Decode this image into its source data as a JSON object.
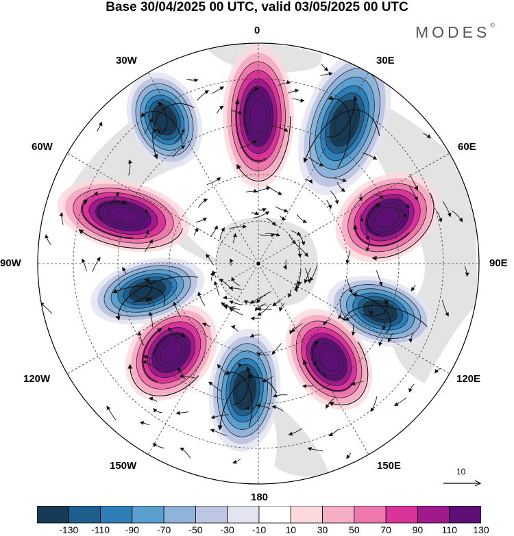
{
  "title": "Base 30/04/2025 00 UTC, valid 03/05/2025 00 UTC",
  "brand": "MODES",
  "brand_mark": "©",
  "longitude_labels": [
    "0",
    "30E",
    "60E",
    "90E",
    "120E",
    "150E",
    "180",
    "150W",
    "120W",
    "90W",
    "60W",
    "30W"
  ],
  "reference_vector": "10",
  "colorbar": {
    "ticks": [
      "-130",
      "-110",
      "-90",
      "-70",
      "-50",
      "-30",
      "-10",
      "10",
      "30",
      "50",
      "70",
      "90",
      "110",
      "130"
    ],
    "colors": [
      "#173a56",
      "#1f5f8e",
      "#2e7fb8",
      "#5b9fcf",
      "#8fb3d9",
      "#bdc6e2",
      "#e4e4f0",
      "#ffffff",
      "#fbd9dd",
      "#f6aec4",
      "#ee78ac",
      "#d9349a",
      "#a11a8c",
      "#5c0f75"
    ]
  },
  "colors": {
    "land": "#e3e3e3",
    "positive_core": "#5c0f75",
    "negative_core": "#173a56"
  }
}
